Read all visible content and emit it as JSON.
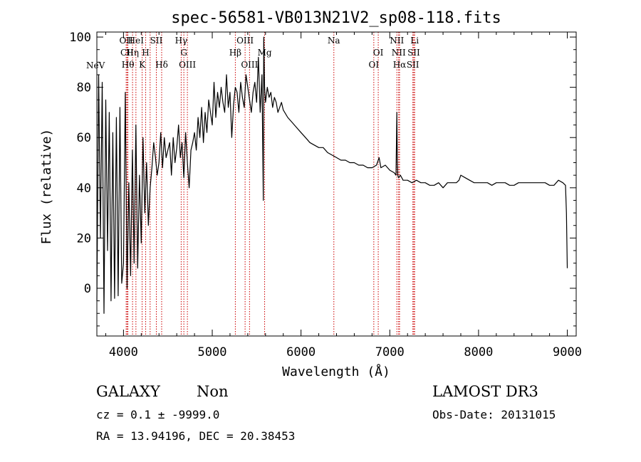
{
  "chart_data": {
    "type": "line",
    "title": "spec-56581-VB013N21V2_sp08-118.fits",
    "xlabel": "Wavelength (Å)",
    "ylabel": "Flux (relative)",
    "xlim": [
      3700,
      9100
    ],
    "ylim": [
      -19,
      102
    ],
    "x_ticks": [
      4000,
      5000,
      6000,
      7000,
      8000,
      9000
    ],
    "x_tick_labels": [
      "4000",
      "5000",
      "6000",
      "7000",
      "8000",
      "9000"
    ],
    "y_ticks": [
      0,
      20,
      40,
      60,
      80,
      100
    ],
    "y_tick_labels": [
      "0",
      "20",
      "40",
      "60",
      "80",
      "100"
    ],
    "grid": false,
    "line_color": "#000000",
    "marker_color": "#cc0000",
    "series": [
      {
        "name": "flux",
        "x": [
          3700,
          3720,
          3740,
          3760,
          3780,
          3800,
          3820,
          3840,
          3860,
          3880,
          3900,
          3920,
          3940,
          3960,
          3980,
          4000,
          4020,
          4040,
          4060,
          4080,
          4100,
          4120,
          4140,
          4160,
          4180,
          4200,
          4220,
          4240,
          4260,
          4280,
          4300,
          4320,
          4340,
          4360,
          4380,
          4400,
          4420,
          4440,
          4460,
          4480,
          4500,
          4520,
          4540,
          4560,
          4580,
          4600,
          4620,
          4640,
          4660,
          4680,
          4700,
          4720,
          4740,
          4760,
          4780,
          4800,
          4820,
          4840,
          4860,
          4880,
          4900,
          4920,
          4940,
          4960,
          4980,
          5000,
          5020,
          5040,
          5060,
          5080,
          5100,
          5120,
          5140,
          5160,
          5180,
          5200,
          5220,
          5240,
          5260,
          5280,
          5300,
          5320,
          5340,
          5360,
          5380,
          5400,
          5420,
          5440,
          5460,
          5480,
          5500,
          5520,
          5540,
          5560,
          5575,
          5580,
          5590,
          5600,
          5620,
          5640,
          5660,
          5680,
          5700,
          5720,
          5740,
          5760,
          5780,
          5800,
          5850,
          5900,
          5950,
          6000,
          6050,
          6100,
          6150,
          6200,
          6250,
          6300,
          6350,
          6400,
          6450,
          6500,
          6550,
          6600,
          6650,
          6700,
          6750,
          6800,
          6850,
          6880,
          6900,
          6950,
          7000,
          7050,
          7070,
          7080,
          7085,
          7090,
          7100,
          7120,
          7150,
          7200,
          7250,
          7300,
          7350,
          7400,
          7450,
          7500,
          7550,
          7600,
          7650,
          7700,
          7750,
          7780,
          7800,
          7850,
          7900,
          7950,
          8000,
          8050,
          8100,
          8150,
          8200,
          8250,
          8300,
          8350,
          8400,
          8450,
          8500,
          8550,
          8600,
          8650,
          8700,
          8750,
          8800,
          8850,
          8900,
          8950,
          8980,
          8990,
          9000
        ],
        "values": [
          -5,
          85,
          20,
          82,
          -10,
          75,
          15,
          70,
          -5,
          62,
          -4,
          68,
          -3,
          72,
          2,
          10,
          78,
          0,
          42,
          5,
          55,
          10,
          65,
          8,
          45,
          18,
          60,
          30,
          50,
          25,
          40,
          48,
          58,
          52,
          45,
          50,
          62,
          48,
          60,
          52,
          55,
          58,
          45,
          60,
          50,
          56,
          65,
          52,
          58,
          44,
          62,
          50,
          40,
          55,
          58,
          62,
          55,
          68,
          60,
          72,
          58,
          70,
          62,
          75,
          70,
          65,
          82,
          68,
          78,
          72,
          80,
          74,
          70,
          85,
          72,
          78,
          60,
          73,
          80,
          78,
          70,
          82,
          76,
          72,
          85,
          80,
          75,
          70,
          78,
          82,
          74,
          92,
          70,
          85,
          35,
          100,
          80,
          74,
          80,
          76,
          78,
          72,
          76,
          74,
          70,
          72,
          74,
          71,
          68,
          66,
          64,
          62,
          60,
          58,
          57,
          56,
          56,
          54,
          53,
          52,
          51,
          51,
          50,
          50,
          49,
          49,
          48,
          48,
          49,
          52,
          48,
          49,
          47,
          46,
          45,
          70,
          50,
          45,
          44,
          45,
          43,
          43,
          42,
          43,
          42,
          42,
          41,
          41,
          42,
          40,
          42,
          42,
          42,
          43,
          45,
          44,
          43,
          42,
          42,
          42,
          42,
          41,
          42,
          42,
          42,
          41,
          41,
          42,
          42,
          42,
          42,
          42,
          42,
          42,
          41,
          41,
          43,
          42,
          41,
          30,
          8
        ]
      }
    ],
    "lines": [
      {
        "x": 4030,
        "label": "OII",
        "row": 0
      },
      {
        "x": 4040,
        "label": "CII",
        "row": 1
      },
      {
        "x": 4050,
        "label": "Hθ",
        "row": 2
      },
      {
        "x": 4102,
        "label": "Hη",
        "row": 1
      },
      {
        "x": 4140,
        "label": "HeI",
        "row": 0
      },
      {
        "x": 4210,
        "label": "K",
        "row": 2
      },
      {
        "x": 4250,
        "label": "H",
        "row": 1
      },
      {
        "x": 4300,
        "label": "",
        "row": 0
      },
      {
        "x": 4370,
        "label": "SII",
        "row": 0
      },
      {
        "x": 4430,
        "label": "Hδ",
        "row": 2
      },
      {
        "x": 4650,
        "label": "Hγ",
        "row": 0
      },
      {
        "x": 4680,
        "label": "G",
        "row": 1
      },
      {
        "x": 4720,
        "label": "OIII",
        "row": 2
      },
      {
        "x": 5260,
        "label": "Hβ",
        "row": 1
      },
      {
        "x": 5370,
        "label": "OIII",
        "row": 0
      },
      {
        "x": 5420,
        "label": "OIII",
        "row": 2
      },
      {
        "x": 5590,
        "label": "Mg",
        "row": 1
      },
      {
        "x": 6370,
        "label": "Na",
        "row": 0
      },
      {
        "x": 6820,
        "label": "OI",
        "row": 2
      },
      {
        "x": 6870,
        "label": "OI",
        "row": 1
      },
      {
        "x": 7080,
        "label": "NII",
        "row": 0
      },
      {
        "x": 7100,
        "label": "NII",
        "row": 1
      },
      {
        "x": 7110,
        "label": "Hα",
        "row": 2
      },
      {
        "x": 7260,
        "label": "SII",
        "row": 2
      },
      {
        "x": 7270,
        "label": "SII",
        "row": 1
      },
      {
        "x": 7280,
        "label": "Li",
        "row": 0
      }
    ],
    "left_label": "NeV"
  },
  "info": {
    "class_label": "GALAXY",
    "subclass_label": "Non",
    "survey_label": "LAMOST DR3",
    "cz_line": "cz = 0.1 ± -9999.0",
    "obs_date_line": "Obs-Date: 20131015",
    "radec_line": "RA =  13.94196, DEC =  20.38453"
  }
}
